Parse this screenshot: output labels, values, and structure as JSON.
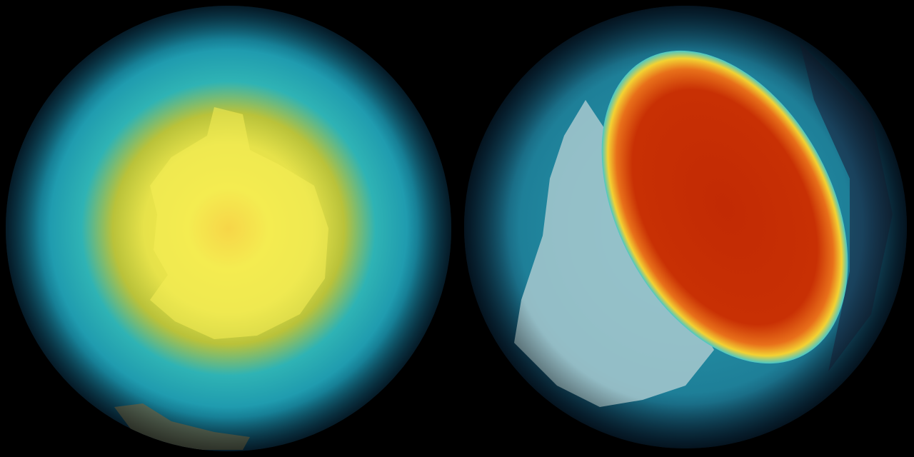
{
  "colors": {
    "background": "#000000",
    "ocean_dark": "#0b3f5c",
    "ocean_teal": "#1b9fb0",
    "ring_yellow": "#d9d23a",
    "core_yellow": "#f5ec48",
    "core_orange": "#f4b233",
    "hole_red": "#b82100",
    "hole_orange": "#e55a10",
    "land_pale": "#a8c9cf",
    "land_brown": "#7a7a5a"
  }
}
